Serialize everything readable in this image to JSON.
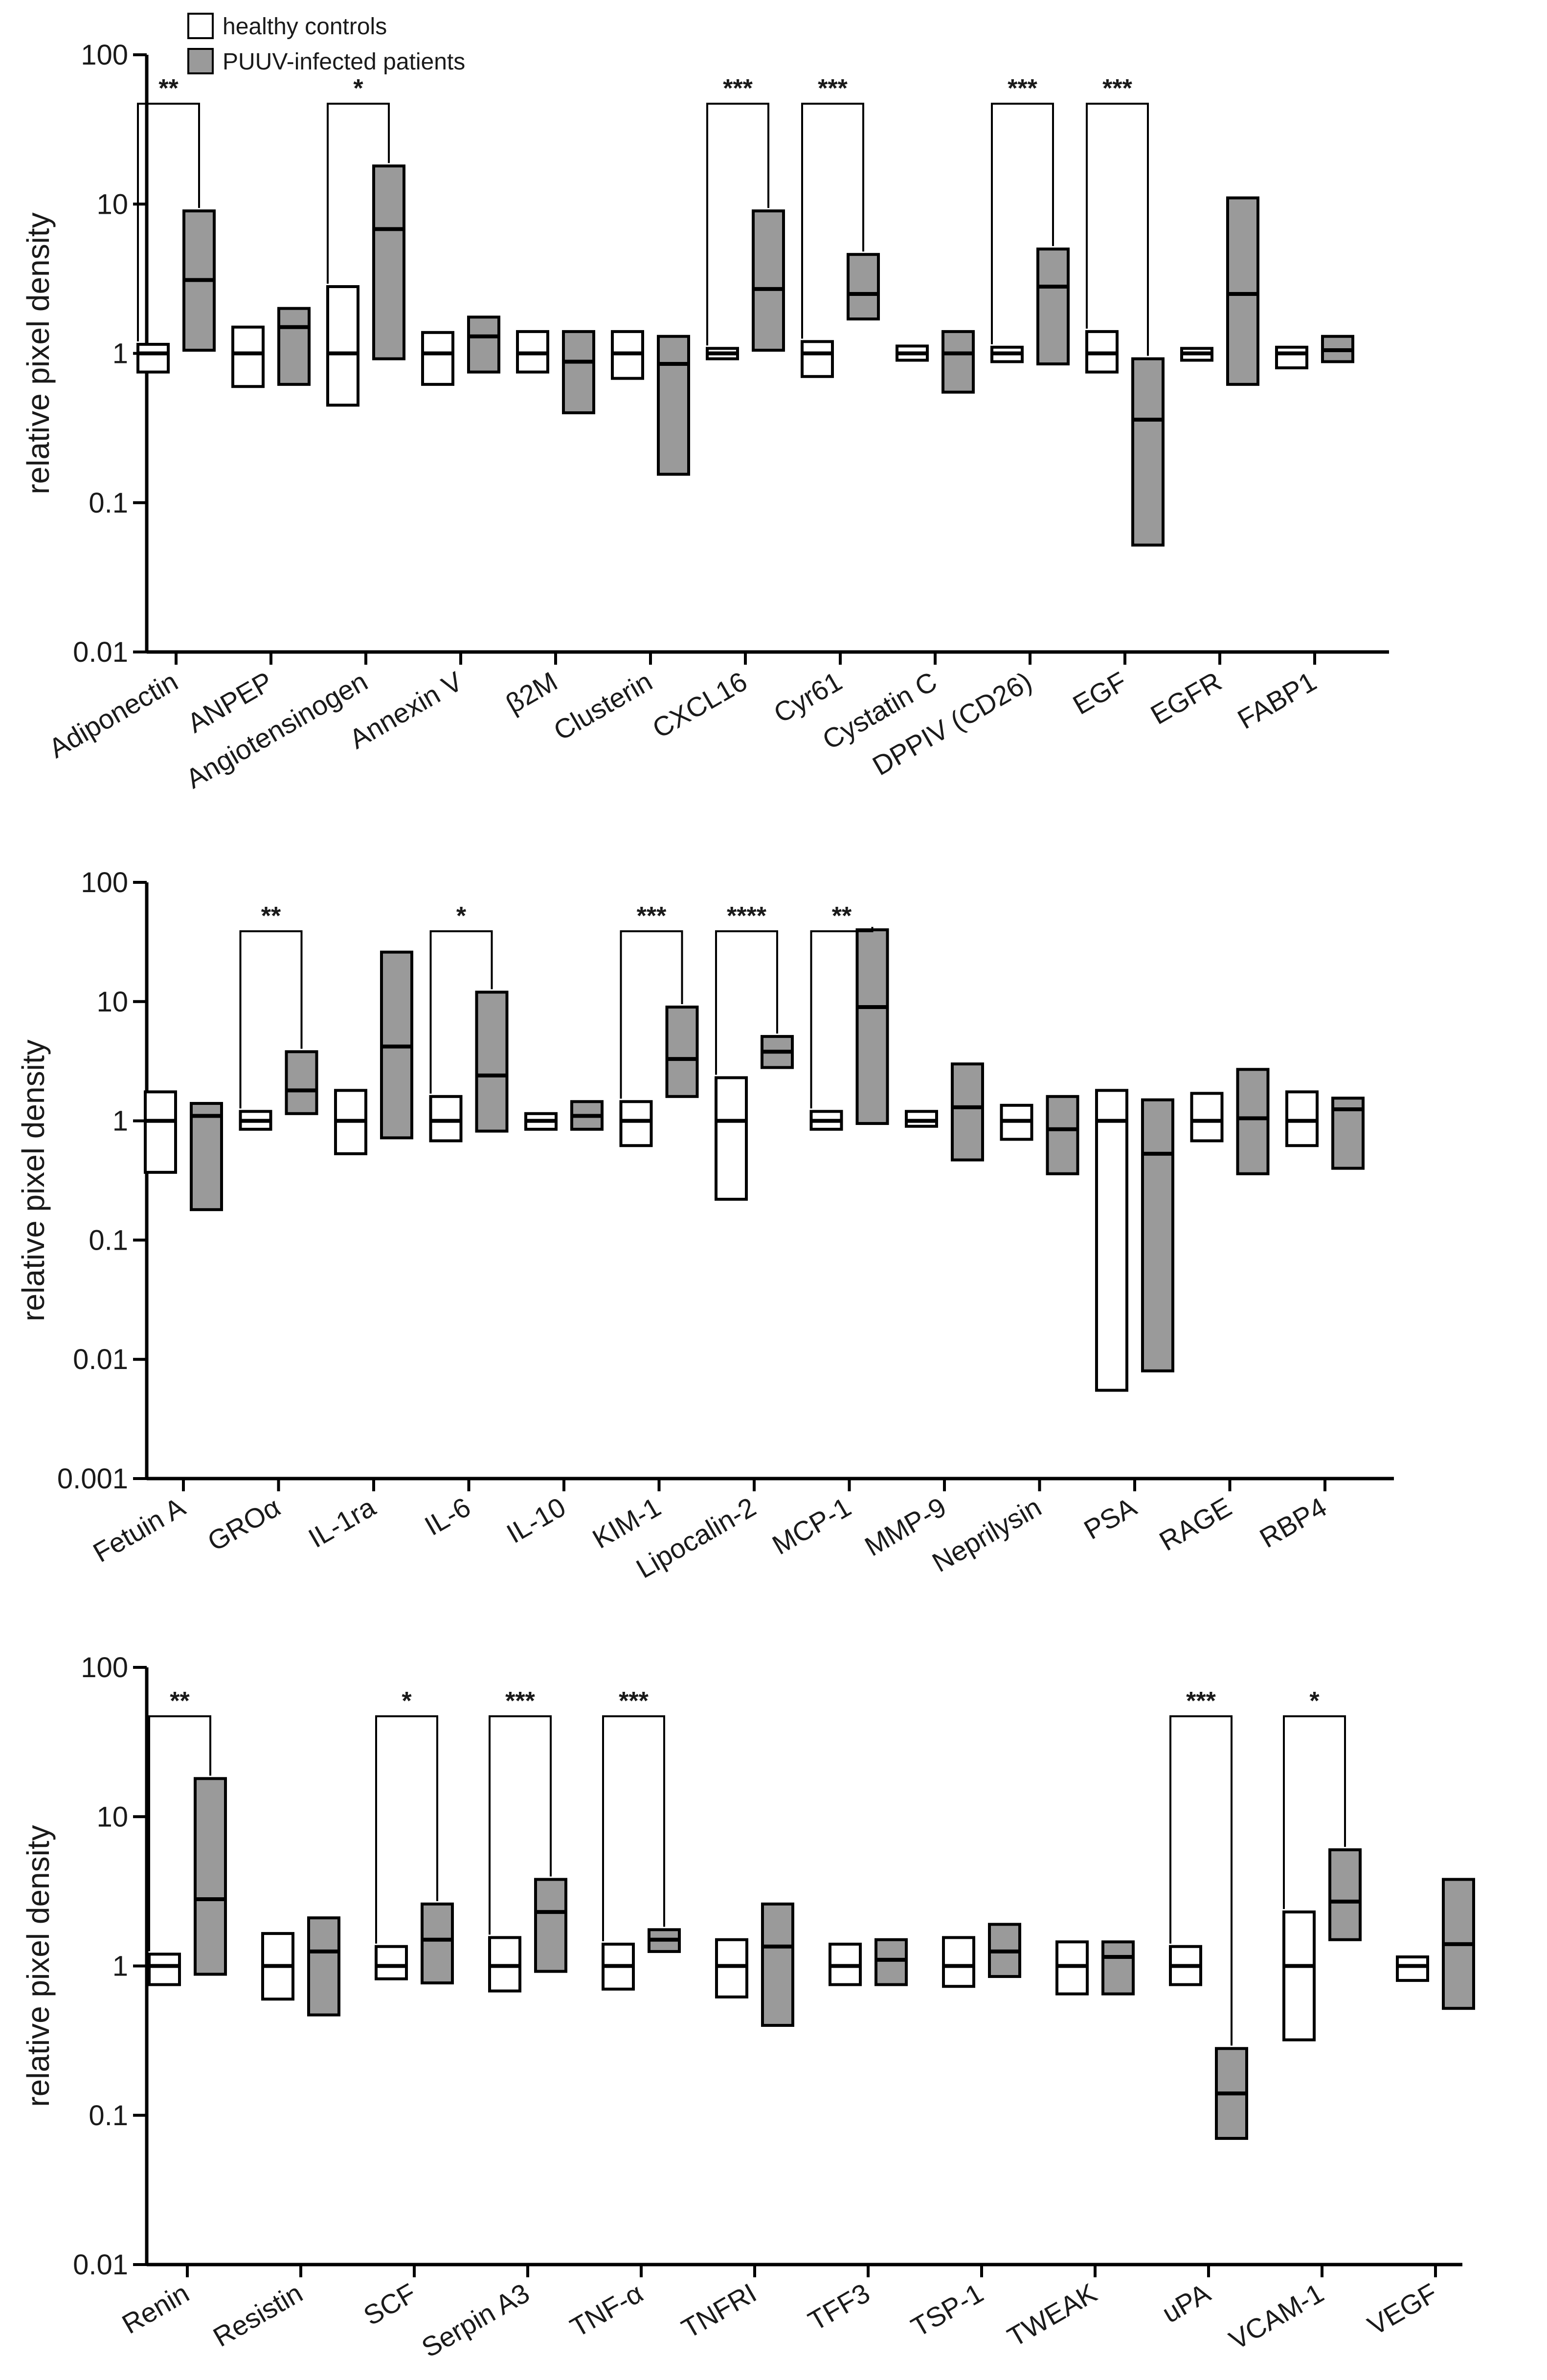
{
  "legend": {
    "items": [
      {
        "label": "healthy controls",
        "color": "#ffffff"
      },
      {
        "label": "PUUV-infected patients",
        "color": "#9a9a9a"
      }
    ]
  },
  "colors": {
    "control": "#ffffff",
    "patient": "#9a9a9a",
    "stroke": "#000000"
  },
  "chart_data": [
    {
      "type": "box",
      "scale": "log",
      "ylabel": "relative pixel density",
      "ylim": [
        0.01,
        100
      ],
      "yticks": [
        {
          "value": 100,
          "label": "100"
        },
        {
          "value": 10,
          "label": "10"
        },
        {
          "value": 1,
          "label": "1"
        },
        {
          "value": 0.1,
          "label": "0.1"
        },
        {
          "value": 0.01,
          "label": "0.01"
        }
      ],
      "categories": [
        "Adiponectin",
        "ANPEP",
        "Angiotensinogen",
        "Annexin V",
        "β2M",
        "Clusterin",
        "CXCL16",
        "Cyr61",
        "Cystatin C",
        "DPPIV (CD26)",
        "EGF",
        "EGFR",
        "FABP1"
      ],
      "series": [
        {
          "name": "healthy controls",
          "values": [
            {
              "low": 0.75,
              "median": 1.0,
              "high": 1.15
            },
            {
              "low": 0.6,
              "median": 1.0,
              "high": 1.5
            },
            {
              "low": 0.45,
              "median": 1.0,
              "high": 2.8
            },
            {
              "low": 0.62,
              "median": 1.0,
              "high": 1.38
            },
            {
              "low": 0.75,
              "median": 1.0,
              "high": 1.4
            },
            {
              "low": 0.68,
              "median": 1.0,
              "high": 1.4
            },
            {
              "low": 0.92,
              "median": 1.0,
              "high": 1.08
            },
            {
              "low": 0.7,
              "median": 1.0,
              "high": 1.2
            },
            {
              "low": 0.9,
              "median": 1.0,
              "high": 1.12
            },
            {
              "low": 0.88,
              "median": 1.0,
              "high": 1.1
            },
            {
              "low": 0.75,
              "median": 1.0,
              "high": 1.4
            },
            {
              "low": 0.9,
              "median": 1.0,
              "high": 1.08
            },
            {
              "low": 0.8,
              "median": 1.0,
              "high": 1.1
            }
          ]
        },
        {
          "name": "PUUV-infected patients",
          "values": [
            {
              "low": 1.05,
              "median": 3.1,
              "high": 9.0
            },
            {
              "low": 0.62,
              "median": 1.5,
              "high": 2.0
            },
            {
              "low": 0.92,
              "median": 6.8,
              "high": 18.0
            },
            {
              "low": 0.75,
              "median": 1.3,
              "high": 1.75
            },
            {
              "low": 0.4,
              "median": 0.88,
              "high": 1.4
            },
            {
              "low": 0.155,
              "median": 0.85,
              "high": 1.3
            },
            {
              "low": 1.05,
              "median": 2.7,
              "high": 9.0
            },
            {
              "low": 1.7,
              "median": 2.5,
              "high": 4.6
            },
            {
              "low": 0.55,
              "median": 1.0,
              "high": 1.4
            },
            {
              "low": 0.85,
              "median": 2.8,
              "high": 5.0
            },
            {
              "low": 0.052,
              "median": 0.36,
              "high": 0.92
            },
            {
              "low": 0.62,
              "median": 2.5,
              "high": 11.0
            },
            {
              "low": 0.88,
              "median": 1.05,
              "high": 1.3
            }
          ]
        }
      ],
      "significance": [
        {
          "category": "Adiponectin",
          "label": "**"
        },
        {
          "category": "Angiotensinogen",
          "label": "*"
        },
        {
          "category": "CXCL16",
          "label": "***"
        },
        {
          "category": "Cyr61",
          "label": "***"
        },
        {
          "category": "DPPIV (CD26)",
          "label": "***"
        },
        {
          "category": "EGF",
          "label": "***"
        }
      ]
    },
    {
      "type": "box",
      "scale": "log",
      "ylabel": "relative pixel density",
      "ylim": [
        0.001,
        100
      ],
      "yticks": [
        {
          "value": 100,
          "label": "100"
        },
        {
          "value": 10,
          "label": "10"
        },
        {
          "value": 1,
          "label": "1"
        },
        {
          "value": 0.1,
          "label": "0.1"
        },
        {
          "value": 0.01,
          "label": "0.01"
        },
        {
          "value": 0.001,
          "label": "0.001"
        }
      ],
      "categories": [
        "Fetuin A",
        "GROα",
        "IL-1ra",
        "IL-6",
        "IL-10",
        "KIM-1",
        "Lipocalin-2",
        "MCP-1",
        "MMP-9",
        "Neprilysin",
        "PSA",
        "RAGE",
        "RBP4"
      ],
      "series": [
        {
          "name": "healthy controls",
          "values": [
            {
              "low": 0.37,
              "median": 1.0,
              "high": 1.75
            },
            {
              "low": 0.85,
              "median": 1.0,
              "high": 1.2
            },
            {
              "low": 0.53,
              "median": 1.0,
              "high": 1.8
            },
            {
              "low": 0.68,
              "median": 1.0,
              "high": 1.6
            },
            {
              "low": 0.85,
              "median": 1.0,
              "high": 1.15
            },
            {
              "low": 0.62,
              "median": 1.0,
              "high": 1.45
            },
            {
              "low": 0.22,
              "median": 1.0,
              "high": 2.3
            },
            {
              "low": 0.85,
              "median": 1.0,
              "high": 1.2
            },
            {
              "low": 0.9,
              "median": 1.0,
              "high": 1.2
            },
            {
              "low": 0.7,
              "median": 1.0,
              "high": 1.35
            },
            {
              "low": 0.0055,
              "median": 1.0,
              "high": 1.8
            },
            {
              "low": 0.68,
              "median": 1.0,
              "high": 1.7
            },
            {
              "low": 0.62,
              "median": 1.0,
              "high": 1.75
            }
          ]
        },
        {
          "name": "PUUV-infected patients",
          "values": [
            {
              "low": 0.18,
              "median": 1.1,
              "high": 1.4
            },
            {
              "low": 1.15,
              "median": 1.8,
              "high": 3.8
            },
            {
              "low": 0.72,
              "median": 4.2,
              "high": 26.0
            },
            {
              "low": 0.82,
              "median": 2.4,
              "high": 12.0
            },
            {
              "low": 0.85,
              "median": 1.1,
              "high": 1.45
            },
            {
              "low": 1.6,
              "median": 3.3,
              "high": 9.0
            },
            {
              "low": 2.8,
              "median": 3.8,
              "high": 5.1
            },
            {
              "low": 0.95,
              "median": 9.0,
              "high": 40.0
            },
            {
              "low": 0.47,
              "median": 1.3,
              "high": 3.0
            },
            {
              "low": 0.36,
              "median": 0.85,
              "high": 1.6
            },
            {
              "low": 0.008,
              "median": 0.53,
              "high": 1.5
            },
            {
              "low": 0.36,
              "median": 1.05,
              "high": 2.7
            },
            {
              "low": 0.4,
              "median": 1.25,
              "high": 1.55
            }
          ]
        }
      ],
      "significance": [
        {
          "category": "GROα",
          "label": "**"
        },
        {
          "category": "IL-6",
          "label": "*"
        },
        {
          "category": "KIM-1",
          "label": "***"
        },
        {
          "category": "Lipocalin-2",
          "label": "****"
        },
        {
          "category": "MCP-1",
          "label": "**"
        }
      ]
    },
    {
      "type": "box",
      "scale": "log",
      "ylabel": "relative pixel density",
      "ylim": [
        0.01,
        100
      ],
      "yticks": [
        {
          "value": 100,
          "label": "100"
        },
        {
          "value": 10,
          "label": "10"
        },
        {
          "value": 1,
          "label": "1"
        },
        {
          "value": 0.1,
          "label": "0.1"
        },
        {
          "value": 0.01,
          "label": "0.01"
        }
      ],
      "categories": [
        "Renin",
        "Resistin",
        "SCF",
        "Serpin A3",
        "TNF-α",
        "TNFRI",
        "TFF3",
        "TSP-1",
        "TWEAK",
        "uPA",
        "VCAM-1",
        "VEGF"
      ],
      "series": [
        {
          "name": "healthy controls",
          "values": [
            {
              "low": 0.75,
              "median": 1.0,
              "high": 1.2
            },
            {
              "low": 0.6,
              "median": 1.0,
              "high": 1.65
            },
            {
              "low": 0.82,
              "median": 1.0,
              "high": 1.35
            },
            {
              "low": 0.68,
              "median": 1.0,
              "high": 1.55
            },
            {
              "low": 0.7,
              "median": 1.0,
              "high": 1.4
            },
            {
              "low": 0.62,
              "median": 1.0,
              "high": 1.5
            },
            {
              "low": 0.75,
              "median": 1.0,
              "high": 1.4
            },
            {
              "low": 0.73,
              "median": 1.0,
              "high": 1.55
            },
            {
              "low": 0.65,
              "median": 1.0,
              "high": 1.45
            },
            {
              "low": 0.75,
              "median": 1.0,
              "high": 1.35
            },
            {
              "low": 0.32,
              "median": 1.0,
              "high": 2.3
            },
            {
              "low": 0.8,
              "median": 1.0,
              "high": 1.15
            }
          ]
        },
        {
          "name": "PUUV-infected patients",
          "values": [
            {
              "low": 0.88,
              "median": 2.8,
              "high": 18.0
            },
            {
              "low": 0.47,
              "median": 1.25,
              "high": 2.1
            },
            {
              "low": 0.77,
              "median": 1.5,
              "high": 2.6
            },
            {
              "low": 0.92,
              "median": 2.3,
              "high": 3.8
            },
            {
              "low": 1.25,
              "median": 1.5,
              "high": 1.75
            },
            {
              "low": 0.4,
              "median": 1.35,
              "high": 2.6
            },
            {
              "low": 0.75,
              "median": 1.1,
              "high": 1.5
            },
            {
              "low": 0.85,
              "median": 1.25,
              "high": 1.9
            },
            {
              "low": 0.65,
              "median": 1.15,
              "high": 1.45
            },
            {
              "low": 0.07,
              "median": 0.14,
              "high": 0.28
            },
            {
              "low": 1.5,
              "median": 2.7,
              "high": 6.0
            },
            {
              "low": 0.52,
              "median": 1.4,
              "high": 3.8
            }
          ]
        }
      ],
      "significance": [
        {
          "category": "Renin",
          "label": "**"
        },
        {
          "category": "SCF",
          "label": "*"
        },
        {
          "category": "Serpin A3",
          "label": "***"
        },
        {
          "category": "TNF-α",
          "label": "***"
        },
        {
          "category": "uPA",
          "label": "***"
        },
        {
          "category": "VCAM-1",
          "label": "*"
        }
      ]
    }
  ]
}
